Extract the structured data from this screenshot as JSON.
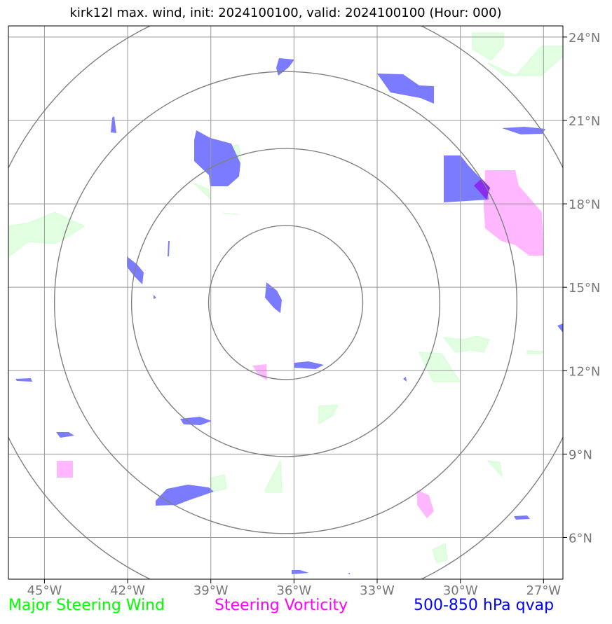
{
  "title": "kirk12l max. wind, init: 2024100100, valid: 2024100100 (Hour: 000)",
  "axes": {
    "lon_labels": [
      "45°W",
      "42°W",
      "39°W",
      "36°W",
      "33°W",
      "30°W",
      "27°W"
    ],
    "lat_labels": [
      "24°N",
      "21°N",
      "18°N",
      "15°N",
      "12°N",
      "9°N",
      "6°N"
    ],
    "lon_values": [
      -45,
      -42,
      -39,
      -36,
      -33,
      -30,
      -27
    ],
    "lat_values": [
      24,
      21,
      18,
      15,
      12,
      9,
      6
    ],
    "lon_range": [
      -46.3,
      -26.3
    ],
    "lat_range": [
      4.5,
      24.4
    ],
    "grid": true,
    "grid_color": "#999999",
    "tick_label_color": "#777777"
  },
  "range_rings": {
    "center_lon": -36.3,
    "center_lat": 14.45,
    "ring_color": "#808080",
    "count": 4
  },
  "legend": {
    "wind": {
      "label": "Major Steering Wind",
      "color": "#00ff00"
    },
    "vorticity": {
      "label": "Steering Vorticity",
      "color": "#ff00ff"
    },
    "qvap": {
      "label": "500-850 hPa qvap",
      "color": "#0000ff"
    }
  },
  "fill_colors": {
    "qvap": "#7b7bff",
    "vorticity": "#ffb8ff",
    "wind": "#e2ffe2",
    "overlap": "#8a2bf0"
  }
}
